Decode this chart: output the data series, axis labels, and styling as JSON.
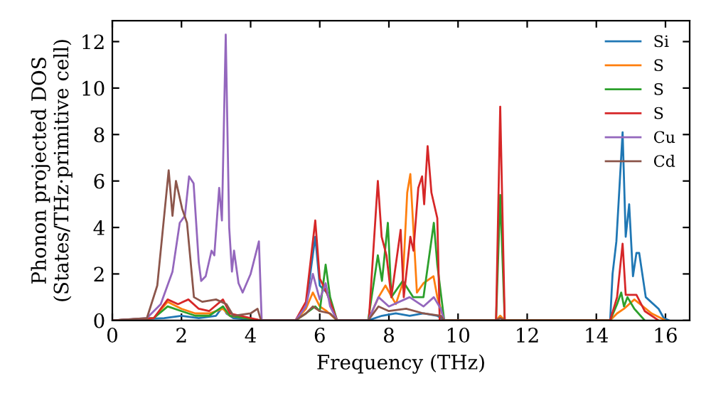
{
  "chart_data": {
    "type": "line",
    "xlabel": "Frequency (THz)",
    "ylabel": "Phonon projected DOS\n(States/THz·primitive cell)",
    "xlim": [
      0,
      16.7
    ],
    "ylim": [
      0,
      12.9
    ],
    "xticks": [
      0,
      2,
      4,
      6,
      8,
      10,
      12,
      14,
      16
    ],
    "yticks": [
      0,
      2,
      4,
      6,
      8,
      10,
      12
    ],
    "legend": "top right",
    "grid": false,
    "line_style": "solid",
    "marker": "none",
    "series": [
      {
        "name": "Si",
        "color": "#1f77b4",
        "x": [
          0,
          1.5,
          2.0,
          2.5,
          3.0,
          3.2,
          3.3,
          3.5,
          4.3,
          5.3,
          5.6,
          5.87,
          6.0,
          6.2,
          6.5,
          7.4,
          7.8,
          8.2,
          8.6,
          9.0,
          9.4,
          9.6,
          11.1,
          11.22,
          11.35,
          14.4,
          14.47,
          14.58,
          14.76,
          14.85,
          14.95,
          15.06,
          15.16,
          15.24,
          15.43,
          15.8,
          15.95,
          16.1
        ],
        "values": [
          0,
          0.1,
          0.2,
          0.1,
          0.2,
          0.6,
          0.3,
          0.1,
          0,
          0,
          0.6,
          3.6,
          1.5,
          1.2,
          0,
          0,
          0.2,
          0.3,
          0.2,
          0.3,
          0.2,
          0,
          0,
          0.1,
          0,
          0,
          2.0,
          3.4,
          8.1,
          3.6,
          5.0,
          1.9,
          2.9,
          2.9,
          1.0,
          0.5,
          0.1,
          0
        ]
      },
      {
        "name": "S",
        "color": "#ff7f0e",
        "x": [
          0,
          1.2,
          1.6,
          2.0,
          2.4,
          2.8,
          3.2,
          3.4,
          4.3,
          5.3,
          5.6,
          5.8,
          6.0,
          6.2,
          6.5,
          7.4,
          7.7,
          7.9,
          8.2,
          8.4,
          8.53,
          8.62,
          8.81,
          9.0,
          9.29,
          9.4,
          9.6,
          11.1,
          11.22,
          11.35,
          14.4,
          14.6,
          14.8,
          15.1,
          15.6,
          16.0
        ],
        "values": [
          0,
          0.1,
          0.8,
          0.5,
          0.3,
          0.3,
          0.5,
          0.2,
          0,
          0,
          0.5,
          1.2,
          0.6,
          0.4,
          0,
          0,
          1.0,
          1.5,
          0.7,
          1.6,
          5.5,
          6.3,
          1.2,
          1.6,
          1.9,
          1.0,
          0,
          0,
          0.2,
          0,
          0,
          0.3,
          0.5,
          0.9,
          0.3,
          0
        ]
      },
      {
        "name": "S",
        "color": "#2ca02c",
        "x": [
          0,
          1.2,
          1.6,
          2.0,
          2.4,
          2.8,
          3.2,
          3.4,
          4.3,
          5.3,
          5.6,
          5.87,
          6.0,
          6.17,
          6.3,
          6.5,
          7.4,
          7.68,
          7.8,
          7.97,
          8.07,
          8.4,
          8.7,
          9.0,
          9.3,
          9.4,
          9.6,
          11.1,
          11.22,
          11.35,
          14.4,
          14.6,
          14.72,
          14.8,
          14.9,
          15.1,
          15.4
        ],
        "values": [
          0,
          0.1,
          0.6,
          0.4,
          0.2,
          0.2,
          0.6,
          0.2,
          0,
          0,
          0.3,
          0.6,
          0.4,
          2.4,
          1.0,
          0,
          0,
          2.8,
          1.7,
          4.2,
          1.0,
          1.7,
          1.0,
          1.0,
          4.2,
          2.4,
          0,
          0,
          5.4,
          0,
          0,
          0.7,
          1.2,
          0.6,
          1.0,
          0.5,
          0
        ]
      },
      {
        "name": "S",
        "color": "#d62728",
        "x": [
          0,
          1.2,
          1.6,
          1.9,
          2.2,
          2.5,
          2.8,
          3.2,
          3.4,
          4.3,
          5.3,
          5.6,
          5.87,
          6.0,
          6.2,
          6.5,
          7.42,
          7.68,
          7.79,
          7.93,
          8.07,
          8.34,
          8.43,
          8.62,
          8.71,
          8.85,
          8.96,
          9.02,
          9.12,
          9.23,
          9.4,
          9.47,
          11.1,
          11.22,
          11.35,
          14.4,
          14.6,
          14.76,
          14.85,
          15.0,
          15.16,
          15.4,
          15.8
        ],
        "values": [
          0,
          0.1,
          0.9,
          0.7,
          0.9,
          0.5,
          0.4,
          0.9,
          0.3,
          0,
          0,
          0.8,
          4.3,
          1.8,
          1.2,
          0,
          0,
          6.0,
          3.6,
          2.8,
          1.0,
          3.9,
          1.0,
          3.6,
          3.0,
          5.7,
          6.2,
          5.0,
          7.5,
          5.5,
          4.4,
          0,
          0,
          9.2,
          0,
          0,
          1.0,
          3.3,
          1.1,
          1.1,
          1.1,
          0.4,
          0
        ]
      },
      {
        "name": "Cu",
        "color": "#9467bd",
        "x": [
          0,
          1.0,
          1.4,
          1.74,
          1.95,
          2.1,
          2.22,
          2.35,
          2.5,
          2.57,
          2.7,
          2.87,
          2.95,
          3.09,
          3.17,
          3.28,
          3.38,
          3.46,
          3.52,
          3.65,
          3.77,
          4.0,
          4.24,
          4.32,
          5.3,
          5.6,
          5.8,
          6.0,
          6.17,
          6.3,
          6.5,
          7.4,
          7.7,
          8.0,
          8.6,
          9.0,
          9.3,
          9.5,
          9.6
        ],
        "values": [
          0,
          0.1,
          0.7,
          2.1,
          4.2,
          4.5,
          6.2,
          5.9,
          2.5,
          1.7,
          1.9,
          3.0,
          2.8,
          5.7,
          4.3,
          12.3,
          4.0,
          2.1,
          3.0,
          1.6,
          1.2,
          2.0,
          3.4,
          0,
          0,
          0.6,
          2.0,
          0.9,
          1.6,
          0.6,
          0,
          0,
          1.0,
          0.6,
          1.0,
          0.6,
          1.0,
          0.5,
          0
        ]
      },
      {
        "name": "Cd",
        "color": "#8c564b",
        "x": [
          0,
          1.0,
          1.3,
          1.63,
          1.74,
          1.84,
          2.02,
          2.16,
          2.36,
          2.6,
          3.0,
          3.3,
          3.5,
          4.0,
          4.2,
          4.3,
          5.3,
          5.6,
          5.8,
          6.0,
          6.3,
          6.5,
          7.4,
          7.7,
          8.0,
          8.5,
          9.0,
          9.5,
          9.6,
          11.1,
          11.22,
          11.35
        ],
        "values": [
          0,
          0.1,
          1.5,
          6.46,
          4.5,
          6.0,
          4.8,
          4.2,
          1.0,
          0.8,
          0.9,
          0.7,
          0.2,
          0.3,
          0.5,
          0,
          0,
          0.3,
          0.6,
          0.4,
          0.3,
          0,
          0,
          0.6,
          0.4,
          0.5,
          0.3,
          0.2,
          0,
          0,
          0.1,
          0
        ]
      }
    ]
  }
}
